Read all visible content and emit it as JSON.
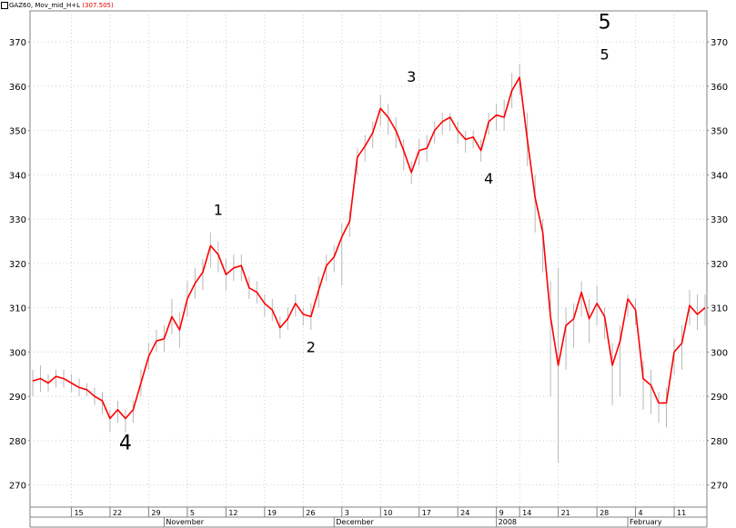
{
  "header": {
    "symbol": "GAZ60",
    "indicator": ", Mov_mid_H+L",
    "indicator_value": "(307.505)"
  },
  "colors": {
    "price_bars": "#b8b8b8",
    "moving_average": "#ff0000",
    "grid": "#d0d0d0",
    "axis": "#808080"
  },
  "chart_data": {
    "type": "line",
    "title": "",
    "xlabel": "",
    "ylabel": "",
    "ylim": [
      265,
      377
    ],
    "y_ticks": [
      270,
      280,
      290,
      300,
      310,
      320,
      330,
      340,
      350,
      360,
      370
    ],
    "y_axis_both_sides": true,
    "grid": true,
    "x_day_ticks": [
      {
        "label": "15",
        "idx": 5
      },
      {
        "label": "22",
        "idx": 10
      },
      {
        "label": "29",
        "idx": 15
      },
      {
        "label": "5",
        "idx": 20
      },
      {
        "label": "12",
        "idx": 25
      },
      {
        "label": "19",
        "idx": 30
      },
      {
        "label": "26",
        "idx": 35
      },
      {
        "label": "3",
        "idx": 40
      },
      {
        "label": "10",
        "idx": 45
      },
      {
        "label": "17",
        "idx": 50
      },
      {
        "label": "24",
        "idx": 55
      },
      {
        "label": "9",
        "idx": 60
      },
      {
        "label": "14",
        "idx": 63
      },
      {
        "label": "21",
        "idx": 68
      },
      {
        "label": "28",
        "idx": 73
      },
      {
        "label": "4",
        "idx": 78
      },
      {
        "label": "11",
        "idx": 83
      }
    ],
    "x_month_labels": [
      {
        "label": "November",
        "idx": 17
      },
      {
        "label": "December",
        "idx": 39
      },
      {
        "label": "2008",
        "idx": 60
      },
      {
        "label": "February",
        "idx": 77
      }
    ],
    "series": [
      {
        "kind": "line",
        "values": [
          293.5,
          294,
          293,
          294.5,
          294,
          293,
          292,
          291.5,
          290,
          289,
          285,
          287,
          285,
          287,
          293,
          299,
          302.5,
          303,
          308,
          305,
          312,
          315.5,
          318,
          324,
          322,
          317.5,
          319,
          319.5,
          314.5,
          313.5,
          311,
          309.5,
          305.5,
          307.5,
          311,
          308.5,
          308,
          314,
          319.5,
          321.5,
          326,
          329.5,
          344,
          346.5,
          349.5,
          355,
          353,
          350,
          345.5,
          340.5,
          345.5,
          346,
          350,
          352,
          353,
          350,
          348,
          348.5,
          345.5,
          352,
          353.5,
          353,
          359,
          362,
          348,
          335,
          327,
          308,
          297,
          306,
          307.5,
          313.5,
          307.5,
          311,
          308,
          297,
          302.5,
          312,
          309.5,
          294,
          292.5,
          288.5,
          288.5,
          300,
          302,
          310.5,
          308.5,
          310
        ]
      },
      {
        "kind": "ohlc_bars",
        "high": [
          296,
          297,
          295,
          296,
          296,
          295,
          294,
          293,
          292,
          291,
          287,
          289,
          287,
          289,
          296,
          302,
          305,
          306,
          312,
          309,
          316,
          319,
          321,
          327,
          325,
          321,
          322,
          322,
          317,
          316,
          313,
          312,
          308,
          310,
          313,
          310,
          311,
          317,
          322,
          324,
          329,
          332,
          346,
          349,
          352,
          358,
          356,
          353,
          348,
          343,
          348,
          349,
          352,
          354,
          354,
          352,
          350,
          350,
          348,
          354,
          356,
          357,
          363,
          365,
          354,
          340,
          330,
          316,
          319,
          310,
          311,
          316,
          312,
          315,
          310,
          302,
          306,
          313,
          312,
          298,
          296,
          291,
          292,
          303,
          306,
          314,
          313,
          313
        ],
        "low": [
          290,
          291,
          291,
          292,
          292,
          291,
          290,
          290,
          288,
          286,
          282,
          284,
          282,
          284,
          290,
          296,
          300,
          300,
          304,
          301,
          308,
          312,
          314,
          319,
          318,
          314,
          316,
          316,
          312,
          311,
          308,
          307,
          303,
          305,
          308,
          306,
          305,
          310,
          316,
          318,
          315,
          326,
          340,
          343,
          346,
          351,
          349,
          346,
          341,
          338,
          342,
          343,
          347,
          349,
          350,
          347,
          345,
          346,
          343,
          349,
          350,
          350,
          355,
          358,
          342,
          327,
          318,
          290,
          275,
          296,
          301,
          308,
          302,
          306,
          303,
          288,
          290,
          308,
          306,
          287,
          286,
          284,
          283,
          295,
          296,
          306,
          305,
          306
        ]
      }
    ],
    "annotations": [
      {
        "text": "4",
        "idx": 12,
        "y": 278,
        "size": "large"
      },
      {
        "text": "1",
        "idx": 24,
        "y": 331,
        "size": "normal"
      },
      {
        "text": "2",
        "idx": 36,
        "y": 300,
        "size": "normal"
      },
      {
        "text": "3",
        "idx": 49,
        "y": 361,
        "size": "normal"
      },
      {
        "text": "4",
        "idx": 59,
        "y": 338,
        "size": "normal"
      },
      {
        "text": "5",
        "idx": 74,
        "y": 366,
        "size": "normal"
      },
      {
        "text": "5",
        "idx": 74,
        "y": 373,
        "size": "large"
      }
    ]
  }
}
